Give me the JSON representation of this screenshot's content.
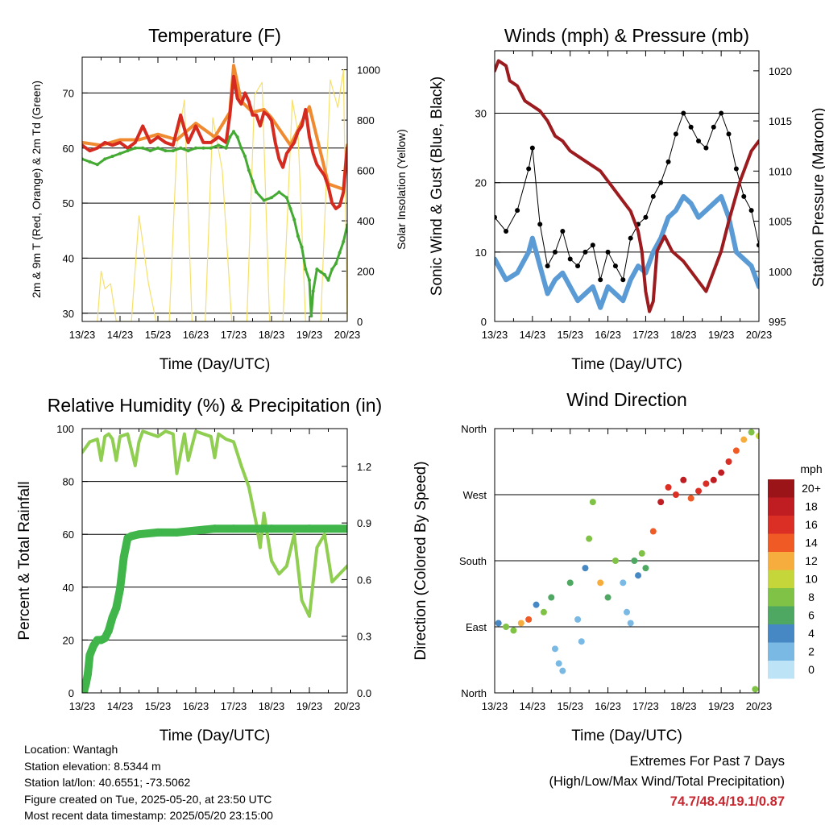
{
  "panels": {
    "temperature": {
      "title": "Temperature (F)",
      "xlabel": "Time (Day/UTC)",
      "ylabel_left": "2m & 9m T (Red, Orange) & 2m Td (Green)",
      "ylabel_right": "Solar Insolation (Yellow)"
    },
    "winds": {
      "title": "Winds (mph) & Pressure (mb)",
      "xlabel": "Time (Day/UTC)",
      "ylabel_left": "Sonic Wind & Gust (Blue, Black)",
      "ylabel_right": "Station Pressure (Maroon)"
    },
    "humidity": {
      "title": "Relative Humidity (%) & Precipitation (in)",
      "xlabel": "Time (Day/UTC)",
      "ylabel_left": "Percent & Total Rainfall"
    },
    "direction": {
      "title": "Wind Direction",
      "xlabel": "Time (Day/UTC)",
      "ylabel_left": "Direction (Colored By Speed)",
      "legend_title": "mph"
    }
  },
  "info": {
    "location": "Location: Wantagh",
    "elevation": "Station elevation: 8.5344 m",
    "latlon": "Station lat/lon: 40.6551; -73.5062",
    "created": "Figure created on Tue, 2025-05-20, at 23:50 UTC",
    "latest": "Most recent data timestamp: 2025/05/20 23:15:00"
  },
  "extremes": {
    "title": "Extremes For Past 7 Days",
    "subtitle": "(High/Low/Max Wind/Total Precipitation)",
    "values": "74.7/48.4/19.1/0.87"
  },
  "colors": {
    "temp_red": "#d42a20",
    "temp_orange": "#f08a30",
    "dewpoint": "#44aa33",
    "solar": "#f7e06a",
    "wind": "#5b9bd5",
    "gust": "#000000",
    "pressure": "#9c1b1f",
    "rh": "#8fce50",
    "precip": "#3fb54a"
  },
  "chart_data": [
    {
      "id": "temperature",
      "type": "line",
      "title": "Temperature (F)",
      "xlabel": "Time (Day/UTC)",
      "x_ticks": [
        "13/23",
        "14/23",
        "15/23",
        "16/23",
        "17/23",
        "18/23",
        "19/23",
        "20/23"
      ],
      "xlim": [
        0,
        7
      ],
      "ylim": [
        28.5,
        76.5
      ],
      "yticks": [
        30,
        40,
        50,
        60,
        70
      ],
      "y2lim": [
        0,
        1050
      ],
      "y2ticks": [
        0,
        200,
        400,
        600,
        800,
        1000
      ],
      "grid": "horizontal",
      "series": [
        {
          "name": "2m T",
          "color": "#d42a20",
          "axis": "left",
          "x": [
            0,
            0.2,
            0.4,
            0.6,
            0.8,
            1.0,
            1.2,
            1.4,
            1.6,
            1.8,
            2.0,
            2.2,
            2.4,
            2.6,
            2.8,
            3.0,
            3.2,
            3.4,
            3.6,
            3.8,
            3.9,
            4.0,
            4.1,
            4.2,
            4.3,
            4.4,
            4.5,
            4.6,
            4.7,
            4.8,
            4.9,
            5.0,
            5.1,
            5.2,
            5.3,
            5.4,
            5.5,
            5.6,
            5.7,
            5.8,
            5.9,
            6.0,
            6.1,
            6.2,
            6.3,
            6.4,
            6.5,
            6.6,
            6.7,
            6.8,
            6.9,
            7.0
          ],
          "y": [
            60.5,
            59.5,
            60,
            61,
            60.5,
            61,
            60,
            61,
            64,
            61,
            62,
            61,
            60.5,
            66,
            61,
            64,
            61,
            61,
            62,
            61,
            66,
            73,
            69,
            68,
            70,
            68.5,
            66,
            66,
            64,
            66.5,
            66,
            65,
            61,
            58,
            56.5,
            59,
            60,
            61,
            63,
            64,
            67,
            62,
            59,
            57,
            56,
            55,
            53,
            50,
            49,
            49.5,
            52,
            60
          ]
        },
        {
          "name": "9m T",
          "color": "#f08a30",
          "axis": "left",
          "x": [
            0,
            0.5,
            1.0,
            1.5,
            2.0,
            2.5,
            3.0,
            3.5,
            3.9,
            4.0,
            4.2,
            4.5,
            4.8,
            5.0,
            5.5,
            6.0,
            6.5,
            6.9,
            7.0
          ],
          "y": [
            61,
            60.5,
            61.5,
            61.5,
            62.5,
            61.5,
            64.5,
            62,
            66.5,
            75,
            68.5,
            66.5,
            67,
            65.5,
            60.5,
            67.5,
            53.5,
            52.5,
            60.5
          ]
        },
        {
          "name": "2m Td",
          "color": "#44aa33",
          "axis": "left",
          "x": [
            0,
            0.2,
            0.4,
            0.6,
            0.8,
            1.0,
            1.2,
            1.4,
            1.6,
            1.8,
            2.0,
            2.2,
            2.4,
            2.6,
            2.8,
            3.0,
            3.2,
            3.4,
            3.6,
            3.8,
            3.9,
            4.0,
            4.1,
            4.2,
            4.3,
            4.4,
            4.5,
            4.6,
            4.8,
            5.0,
            5.2,
            5.4,
            5.5,
            5.6,
            5.7,
            5.8,
            5.9,
            6.0,
            6.05,
            6.1,
            6.2,
            6.3,
            6.4,
            6.5,
            6.6,
            6.7,
            6.8,
            6.9,
            7.0
          ],
          "y": [
            58,
            57.5,
            57,
            58,
            58.5,
            59,
            59.5,
            60,
            60,
            59.5,
            60,
            59.5,
            59.5,
            60,
            59.5,
            60,
            60,
            60,
            60.5,
            60,
            62,
            63,
            62,
            60,
            58.5,
            56,
            54,
            52,
            50.5,
            51,
            52,
            51,
            49,
            47,
            44,
            42,
            38,
            36,
            29.5,
            34,
            38,
            37.5,
            37,
            36,
            38,
            39,
            41,
            43,
            46
          ]
        },
        {
          "name": "Solar Insolation",
          "color": "#f7e06a",
          "axis": "right",
          "x": [
            0.4,
            0.5,
            0.6,
            0.75,
            0.9,
            1.3,
            1.5,
            1.75,
            1.95,
            2.3,
            2.5,
            2.7,
            2.9,
            3.25,
            3.45,
            3.7,
            3.95,
            4.35,
            4.55,
            4.75,
            4.95,
            5.3,
            5.55,
            5.7,
            5.9,
            6.3,
            6.55,
            6.75,
            6.9,
            7.0
          ],
          "y": [
            0,
            200,
            130,
            150,
            0,
            0,
            420,
            150,
            0,
            0,
            700,
            880,
            0,
            0,
            810,
            600,
            0,
            0,
            900,
            950,
            0,
            0,
            880,
            750,
            0,
            0,
            960,
            850,
            1000,
            0
          ]
        }
      ]
    },
    {
      "id": "winds",
      "type": "line",
      "title": "Winds (mph) & Pressure (mb)",
      "xlabel": "Time (Day/UTC)",
      "x_ticks": [
        "13/23",
        "14/23",
        "15/23",
        "16/23",
        "17/23",
        "18/23",
        "19/23",
        "20/23"
      ],
      "xlim": [
        0,
        7
      ],
      "ylim": [
        0,
        39
      ],
      "yticks": [
        0,
        10,
        20,
        30
      ],
      "y2lim": [
        995,
        1022
      ],
      "y2ticks": [
        995,
        1000,
        1005,
        1010,
        1015,
        1020
      ],
      "grid": "horizontal",
      "series": [
        {
          "name": "Sonic Wind",
          "color": "#5b9bd5",
          "axis": "left",
          "x": [
            0,
            0.3,
            0.6,
            0.9,
            1.0,
            1.2,
            1.4,
            1.6,
            1.8,
            2.0,
            2.2,
            2.4,
            2.6,
            2.8,
            3.0,
            3.2,
            3.4,
            3.6,
            3.8,
            4.0,
            4.2,
            4.4,
            4.6,
            4.8,
            5.0,
            5.2,
            5.4,
            5.6,
            5.8,
            6.0,
            6.2,
            6.4,
            6.6,
            6.8,
            7.0
          ],
          "y": [
            9,
            6,
            7,
            10,
            12,
            8,
            4,
            6,
            7,
            5,
            3,
            4,
            5,
            2,
            5,
            4,
            3,
            6,
            8,
            7,
            10,
            12,
            15,
            16,
            18,
            17,
            15,
            16,
            17,
            18,
            15,
            10,
            9,
            8,
            5
          ]
        },
        {
          "name": "Gust",
          "color": "#000000",
          "axis": "left",
          "x": [
            0,
            0.3,
            0.6,
            0.9,
            1.0,
            1.2,
            1.4,
            1.6,
            1.8,
            2.0,
            2.2,
            2.4,
            2.6,
            2.8,
            3.0,
            3.2,
            3.4,
            3.6,
            3.8,
            4.0,
            4.2,
            4.4,
            4.6,
            4.8,
            5.0,
            5.2,
            5.4,
            5.6,
            5.8,
            6.0,
            6.2,
            6.4,
            6.6,
            6.8,
            7.0
          ],
          "y": [
            15,
            13,
            16,
            22,
            25,
            14,
            8,
            10,
            13,
            9,
            8,
            10,
            11,
            6,
            10,
            8,
            6,
            12,
            14,
            15,
            18,
            20,
            23,
            27,
            30,
            28,
            26,
            25,
            28,
            30,
            27,
            22,
            18,
            16,
            11
          ]
        },
        {
          "name": "Station Pressure",
          "color": "#9c1b1f",
          "axis": "right",
          "x": [
            0,
            0.1,
            0.3,
            0.4,
            0.6,
            0.8,
            1.0,
            1.2,
            1.4,
            1.6,
            1.8,
            2.0,
            2.2,
            2.4,
            2.6,
            2.8,
            3.0,
            3.2,
            3.4,
            3.6,
            3.8,
            3.9,
            4.0,
            4.1,
            4.2,
            4.3,
            4.5,
            4.7,
            5.0,
            5.2,
            5.4,
            5.6,
            5.8,
            6.0,
            6.2,
            6.5,
            6.8,
            7.0
          ],
          "y": [
            1020,
            1021,
            1020.5,
            1019,
            1018.5,
            1017,
            1016.5,
            1016,
            1015,
            1013.5,
            1013,
            1012,
            1011.5,
            1011,
            1010.5,
            1010,
            1009,
            1008,
            1007,
            1006,
            1004,
            1002,
            998,
            996,
            997,
            1002,
            1003.5,
            1002,
            1001,
            1000,
            999,
            998,
            1000,
            1002,
            1005,
            1009,
            1012,
            1013
          ]
        }
      ]
    },
    {
      "id": "humidity",
      "type": "line",
      "title": "Relative Humidity (%) & Precipitation (in)",
      "xlabel": "Time (Day/UTC)",
      "x_ticks": [
        "13/23",
        "14/23",
        "15/23",
        "16/23",
        "17/23",
        "18/23",
        "19/23",
        "20/23"
      ],
      "xlim": [
        0,
        7
      ],
      "ylim": [
        0,
        100
      ],
      "yticks": [
        0,
        20,
        40,
        60,
        80,
        100
      ],
      "y2lim": [
        0,
        1.4
      ],
      "y2ticks": [
        "0.0",
        "0.3",
        "0.6",
        "0.9",
        "1.2"
      ],
      "grid": "horizontal",
      "series": [
        {
          "name": "RH",
          "color": "#8fce50",
          "axis": "left",
          "x": [
            0,
            0.2,
            0.4,
            0.5,
            0.6,
            0.7,
            0.8,
            0.9,
            1.0,
            1.2,
            1.4,
            1.5,
            1.6,
            1.8,
            2.0,
            2.2,
            2.4,
            2.5,
            2.7,
            2.8,
            3.0,
            3.2,
            3.4,
            3.5,
            3.6,
            3.8,
            4.0,
            4.2,
            4.4,
            4.6,
            4.7,
            4.8,
            5.0,
            5.2,
            5.4,
            5.6,
            5.8,
            6.0,
            6.2,
            6.4,
            6.6,
            6.8,
            7.0
          ],
          "y": [
            91,
            95,
            96,
            88,
            97,
            98,
            96,
            88,
            97,
            98,
            86,
            95,
            99,
            98,
            97,
            99,
            98,
            83,
            98,
            88,
            99,
            98,
            97,
            89,
            98,
            96,
            95,
            86,
            78,
            64,
            55,
            68,
            50,
            45,
            48,
            60,
            35,
            29,
            55,
            60,
            42,
            45,
            48
          ]
        },
        {
          "name": "Total Rainfall",
          "color": "#3fb54a",
          "axis": "right",
          "x": [
            0,
            0.05,
            0.1,
            0.15,
            0.2,
            0.3,
            0.4,
            0.5,
            0.6,
            0.7,
            0.8,
            0.9,
            1.0,
            1.1,
            1.2,
            1.3,
            1.5,
            2.0,
            2.5,
            3.0,
            3.5,
            4.0,
            5.0,
            6.0,
            7.0
          ],
          "y": [
            0,
            0.01,
            0.05,
            0.1,
            0.2,
            0.25,
            0.28,
            0.28,
            0.29,
            0.33,
            0.4,
            0.45,
            0.55,
            0.72,
            0.82,
            0.83,
            0.84,
            0.85,
            0.85,
            0.86,
            0.87,
            0.87,
            0.87,
            0.87,
            0.87
          ]
        }
      ]
    },
    {
      "id": "direction",
      "type": "scatter",
      "title": "Wind Direction",
      "xlabel": "Time (Day/UTC)",
      "x_ticks": [
        "13/23",
        "14/23",
        "15/23",
        "16/23",
        "17/23",
        "18/23",
        "19/23",
        "20/23"
      ],
      "xlim": [
        0,
        7
      ],
      "ylim": [
        0,
        360
      ],
      "yticks": [
        "North",
        "East",
        "South",
        "West",
        "North"
      ],
      "colorbar": {
        "title": "mph",
        "levels": [
          "20+",
          "18",
          "16",
          "14",
          "12",
          "10",
          "8",
          "6",
          "4",
          "2",
          "0"
        ],
        "colors": [
          "#9b1418",
          "#bf1d22",
          "#db2e25",
          "#f05a25",
          "#f7ad3e",
          "#c4d63a",
          "#7fc245",
          "#4fa862",
          "#4688c4",
          "#7ab9e4",
          "#bde3f7"
        ]
      },
      "series": [
        {
          "name": "direction",
          "x": [
            0.1,
            0.3,
            0.5,
            0.7,
            0.9,
            1.1,
            1.3,
            1.5,
            1.6,
            1.7,
            1.8,
            2.0,
            2.2,
            2.3,
            2.4,
            2.5,
            2.6,
            2.8,
            3.0,
            3.2,
            3.4,
            3.5,
            3.6,
            3.7,
            3.8,
            3.9,
            4.0,
            4.2,
            4.4,
            4.6,
            4.8,
            5.0,
            5.2,
            5.4,
            5.6,
            5.8,
            6.0,
            6.2,
            6.4,
            6.6,
            6.8,
            6.9,
            7.0
          ],
          "y": [
            95,
            90,
            85,
            95,
            100,
            120,
            110,
            130,
            60,
            40,
            30,
            150,
            100,
            70,
            170,
            210,
            260,
            150,
            130,
            180,
            150,
            110,
            95,
            180,
            160,
            190,
            170,
            220,
            260,
            280,
            270,
            290,
            265,
            275,
            285,
            290,
            300,
            315,
            330,
            345,
            355,
            5,
            350
          ],
          "speed": [
            4,
            8,
            9,
            12,
            14,
            4,
            8,
            6,
            3,
            2,
            3,
            6,
            3,
            2,
            4,
            8,
            9,
            12,
            6,
            9,
            3,
            2,
            3,
            6,
            5,
            8,
            7,
            14,
            18,
            17,
            16,
            18,
            14,
            16,
            17,
            18,
            19,
            16,
            14,
            12,
            9,
            8,
            10
          ]
        }
      ]
    }
  ]
}
